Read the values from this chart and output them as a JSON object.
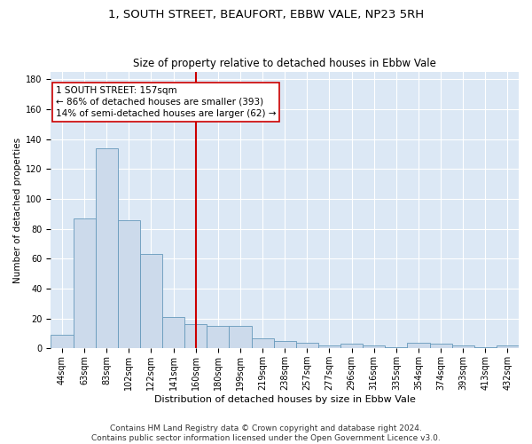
{
  "title": "1, SOUTH STREET, BEAUFORT, EBBW VALE, NP23 5RH",
  "subtitle": "Size of property relative to detached houses in Ebbw Vale",
  "xlabel": "Distribution of detached houses by size in Ebbw Vale",
  "ylabel": "Number of detached properties",
  "bar_values": [
    9,
    87,
    134,
    86,
    63,
    21,
    16,
    15,
    15,
    7,
    5,
    4,
    2,
    3,
    2,
    1,
    4,
    3,
    2,
    1,
    2
  ],
  "bin_labels": [
    "44sqm",
    "63sqm",
    "83sqm",
    "102sqm",
    "122sqm",
    "141sqm",
    "160sqm",
    "180sqm",
    "199sqm",
    "219sqm",
    "238sqm",
    "257sqm",
    "277sqm",
    "296sqm",
    "316sqm",
    "335sqm",
    "354sqm",
    "374sqm",
    "393sqm",
    "413sqm",
    "432sqm"
  ],
  "bar_color": "#ccdaeb",
  "bar_edge_color": "#6699bb",
  "vline_x": 6,
  "vline_color": "#cc0000",
  "annotation_text": "1 SOUTH STREET: 157sqm\n← 86% of detached houses are smaller (393)\n14% of semi-detached houses are larger (62) →",
  "annotation_box_color": "#cc0000",
  "ylim": [
    0,
    185
  ],
  "yticks": [
    0,
    20,
    40,
    60,
    80,
    100,
    120,
    140,
    160,
    180
  ],
  "footer_line1": "Contains HM Land Registry data © Crown copyright and database right 2024.",
  "footer_line2": "Contains public sector information licensed under the Open Government Licence v3.0.",
  "plot_bg_color": "#dce8f5",
  "title_fontsize": 9.5,
  "subtitle_fontsize": 8.5,
  "xlabel_fontsize": 8,
  "ylabel_fontsize": 7.5,
  "tick_fontsize": 7,
  "footer_fontsize": 6.5,
  "annotation_fontsize": 7.5,
  "grid_color": "#ffffff"
}
